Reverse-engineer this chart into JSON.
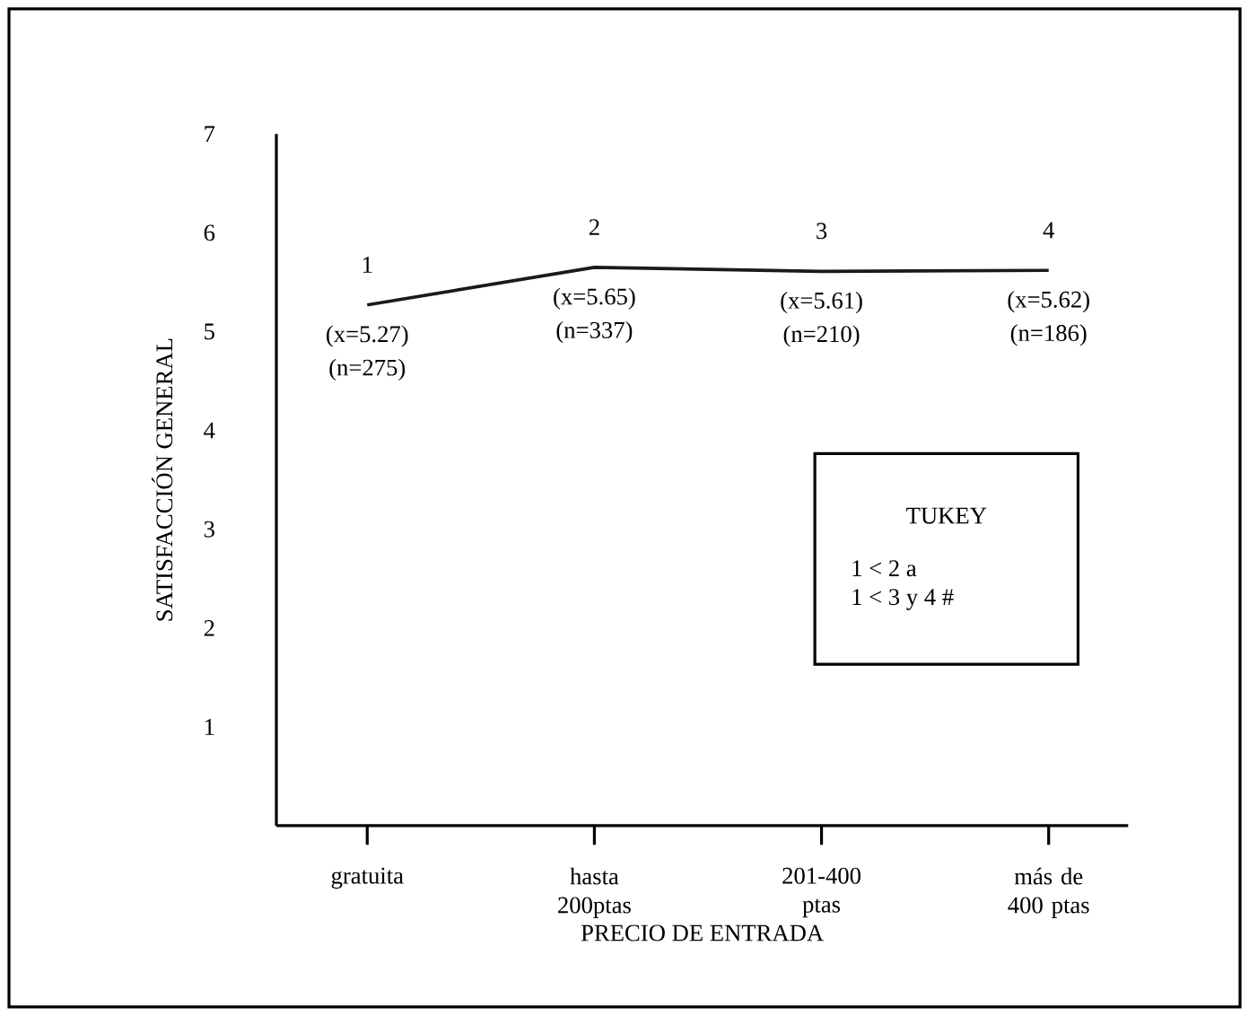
{
  "chart_data": {
    "type": "line",
    "xlabel": "PRECIO DE ENTRADA",
    "ylabel": "SATISFACCIÓN GENERAL",
    "categories": [
      "gratuita",
      "hasta 200ptas",
      "201-400 ptas",
      "más de 400 ptas"
    ],
    "values": [
      5.27,
      5.65,
      5.61,
      5.62
    ],
    "value_labels": [
      "(x=5.27)",
      "(x=5.65)",
      "(x=5.61)",
      "(x=5.62)"
    ],
    "color": "#1a1a1a",
    "marker": "none",
    "line_style": "solid",
    "grid": false,
    "ylim": [
      0,
      7
    ],
    "yticks": [
      1,
      2,
      3,
      4,
      5,
      6,
      7
    ],
    "annotations": [
      "1",
      "2",
      "3",
      "4",
      "(n=275)",
      "(n=337)",
      "(n=210)",
      "(n=186)",
      "TUKEY",
      "1 < 2 a",
      "1 < 3 y 4 #"
    ]
  }
}
